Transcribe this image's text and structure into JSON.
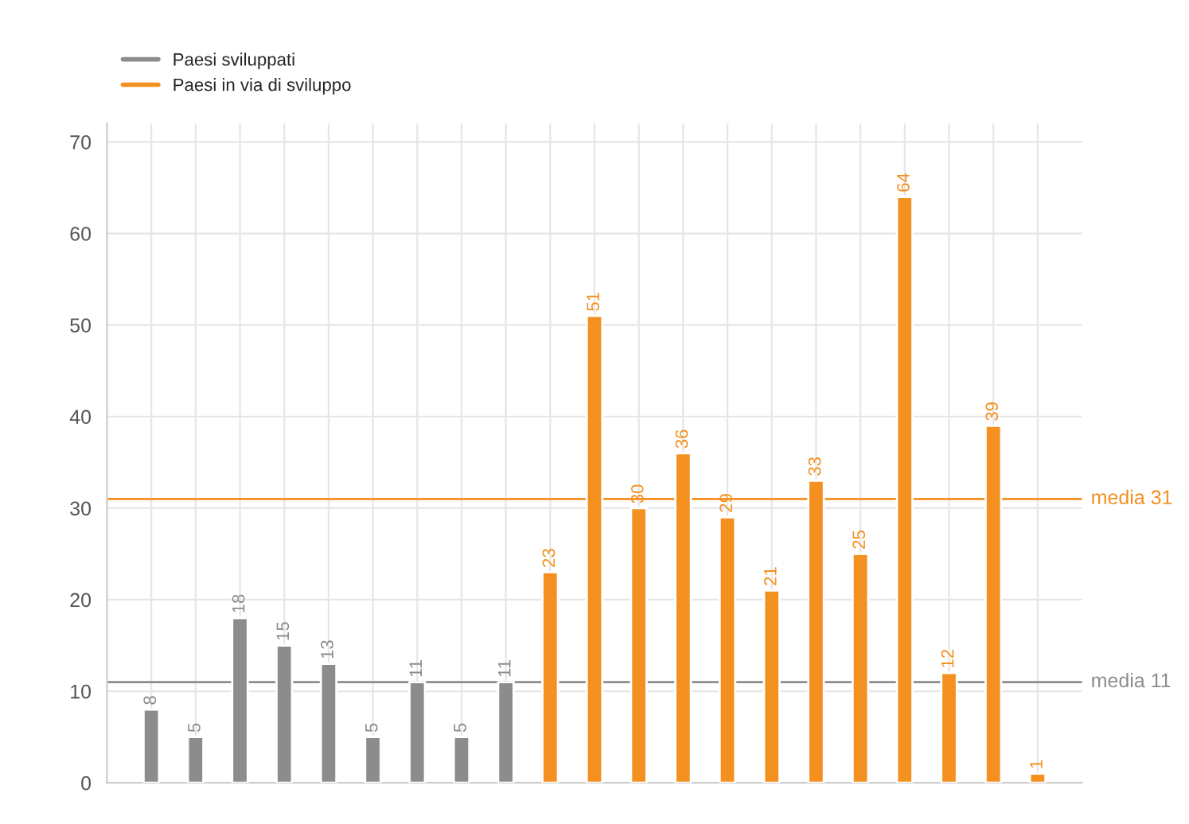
{
  "chart_data": {
    "type": "bar",
    "categories": [
      null,
      null,
      null,
      null,
      null,
      null,
      null,
      null,
      null,
      null,
      null,
      null,
      null,
      null,
      null,
      null,
      null,
      null,
      null,
      null,
      null
    ],
    "series": [
      {
        "name": "Paesi sviluppati",
        "color": "#8c8c8c",
        "values": [
          8,
          5,
          18,
          15,
          13,
          5,
          11,
          5,
          11,
          null,
          null,
          null,
          null,
          null,
          null,
          null,
          null,
          null,
          null,
          null,
          null
        ]
      },
      {
        "name": "Paesi in via di sviluppo",
        "color": "#f39020",
        "values": [
          null,
          null,
          null,
          null,
          null,
          null,
          null,
          null,
          null,
          23,
          51,
          30,
          36,
          29,
          21,
          33,
          25,
          64,
          12,
          39,
          1
        ]
      }
    ],
    "ylim": [
      0,
      72
    ],
    "yticks": [
      0,
      10,
      20,
      30,
      40,
      50,
      60,
      70
    ],
    "grid": true,
    "legend": "top left",
    "data_labels": true,
    "ref_lines": [
      {
        "axis": "y",
        "value": 31,
        "label": "media 31",
        "color": "#f39020"
      },
      {
        "axis": "y",
        "value": 11,
        "label": "media 11",
        "color": "#8c8c8c"
      }
    ]
  }
}
